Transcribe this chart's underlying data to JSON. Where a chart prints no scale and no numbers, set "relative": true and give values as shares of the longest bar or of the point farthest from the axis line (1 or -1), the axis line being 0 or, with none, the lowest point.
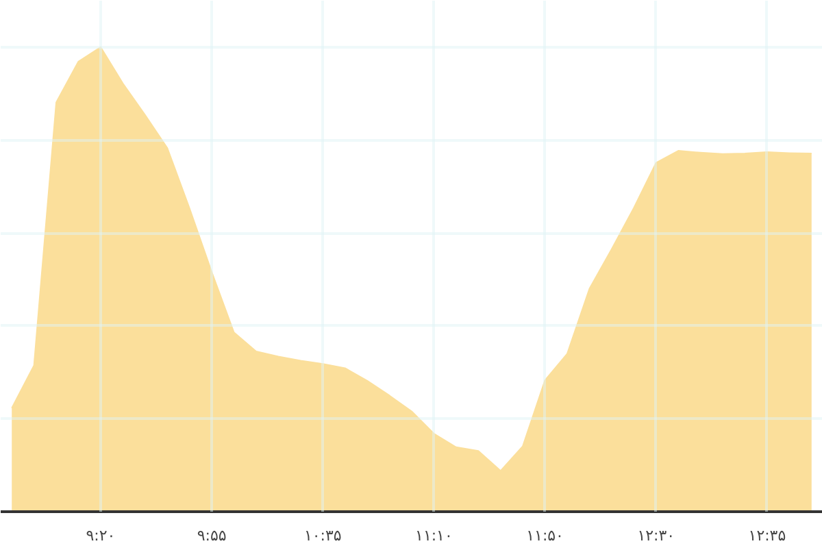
{
  "chart_data": {
    "type": "area",
    "relative": true,
    "grid": true,
    "color": "#fbdf9b",
    "categories": [
      null,
      null,
      null,
      null,
      "۹:۲۰",
      null,
      null,
      null,
      null,
      "۹:۵۵",
      null,
      null,
      null,
      null,
      "۱۰:۳۵",
      null,
      null,
      null,
      null,
      "۱۱:۱۰",
      null,
      null,
      null,
      null,
      "۱۱:۵۰",
      null,
      null,
      null,
      null,
      "۱۲:۳۰",
      null,
      null,
      null,
      null,
      "۱۲:۳۵",
      null,
      null
    ],
    "values": [
      0.223,
      0.315,
      0.881,
      0.969,
      1,
      0.922,
      0.854,
      0.783,
      0.653,
      0.516,
      0.386,
      0.345,
      0.334,
      0.325,
      0.318,
      0.309,
      0.282,
      0.25,
      0.216,
      0.168,
      0.139,
      0.131,
      0.088,
      0.141,
      0.283,
      0.34,
      0.48,
      0.565,
      0.654,
      0.751,
      0.777,
      0.773,
      0.77,
      0.771,
      0.774,
      0.772,
      0.771
    ]
  }
}
